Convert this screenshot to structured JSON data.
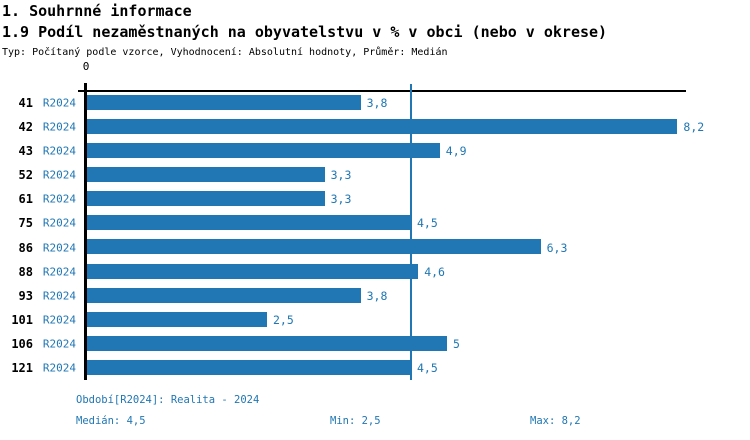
{
  "header": {
    "section_title": "1. Souhrnné informace",
    "chart_title": "1.9 Podíl nezaměstnaných na obyvatelstvu v % v obci (nebo v okrese)",
    "meta": "Typ: Počítaný podle vzorce, Vyhodnocení: Absolutní hodnoty, Průměr: Medián"
  },
  "chart_data": {
    "type": "bar",
    "orientation": "horizontal",
    "title": "1.9 Podíl nezaměstnaných na obyvatelstvu v % v obci (nebo v okrese)",
    "categories": [
      "41",
      "42",
      "43",
      "52",
      "61",
      "75",
      "86",
      "88",
      "93",
      "101",
      "106",
      "121"
    ],
    "series_label": "R2024",
    "values": [
      3.8,
      8.2,
      4.9,
      3.3,
      3.3,
      4.5,
      6.3,
      4.6,
      3.8,
      2.5,
      5,
      4.5
    ],
    "value_labels": [
      "3,8",
      "8,2",
      "4,9",
      "3,3",
      "3,3",
      "4,5",
      "6,3",
      "4,6",
      "3,8",
      "2,5",
      "5",
      "4,5"
    ],
    "xlim": [
      0,
      8.33
    ],
    "axis_origin_label": "0",
    "median_line_value": 4.5,
    "grid": false,
    "legend_position": "none",
    "bar_color": "#2077b4",
    "median_line_color": "#2077b4"
  },
  "footer": {
    "period": "Období[R2024]: Realita - 2024",
    "median": "Medián: 4,5",
    "min": "Min: 2,5",
    "max": "Max: 8,2"
  },
  "colors": {
    "accent_blue": "#2077b4",
    "axis_black": "#000000",
    "background": "#ffffff"
  }
}
